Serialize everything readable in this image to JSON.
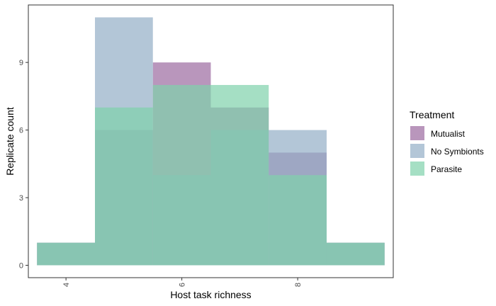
{
  "chart_data": {
    "type": "bar",
    "title": "",
    "xlabel": "Host task richness",
    "ylabel": "Replicate count",
    "bin_width": 1,
    "x_ticks": [
      4,
      6,
      8
    ],
    "y_ticks": [
      0,
      3,
      6,
      9
    ],
    "xlim": [
      3.35,
      9.65
    ],
    "ylim": [
      -0.55,
      11.55
    ],
    "grid": false,
    "legend_position": "right",
    "legend_title": "Treatment",
    "series": [
      {
        "name": "Mutualist",
        "color": "#9b6a9f",
        "x": [
          4,
          5,
          6,
          7,
          8,
          9
        ],
        "values": [
          1,
          6,
          9,
          7,
          5,
          1
        ]
      },
      {
        "name": "No Symbionts",
        "color": "#93aec6",
        "x": [
          4,
          5,
          6,
          7,
          8,
          9
        ],
        "values": [
          1,
          11,
          4,
          6,
          6,
          1
        ]
      },
      {
        "name": "Parasite",
        "color": "#7fd2ab",
        "x": [
          4,
          5,
          6,
          7,
          8,
          9
        ],
        "values": [
          1,
          7,
          8,
          8,
          4,
          1
        ]
      }
    ]
  }
}
